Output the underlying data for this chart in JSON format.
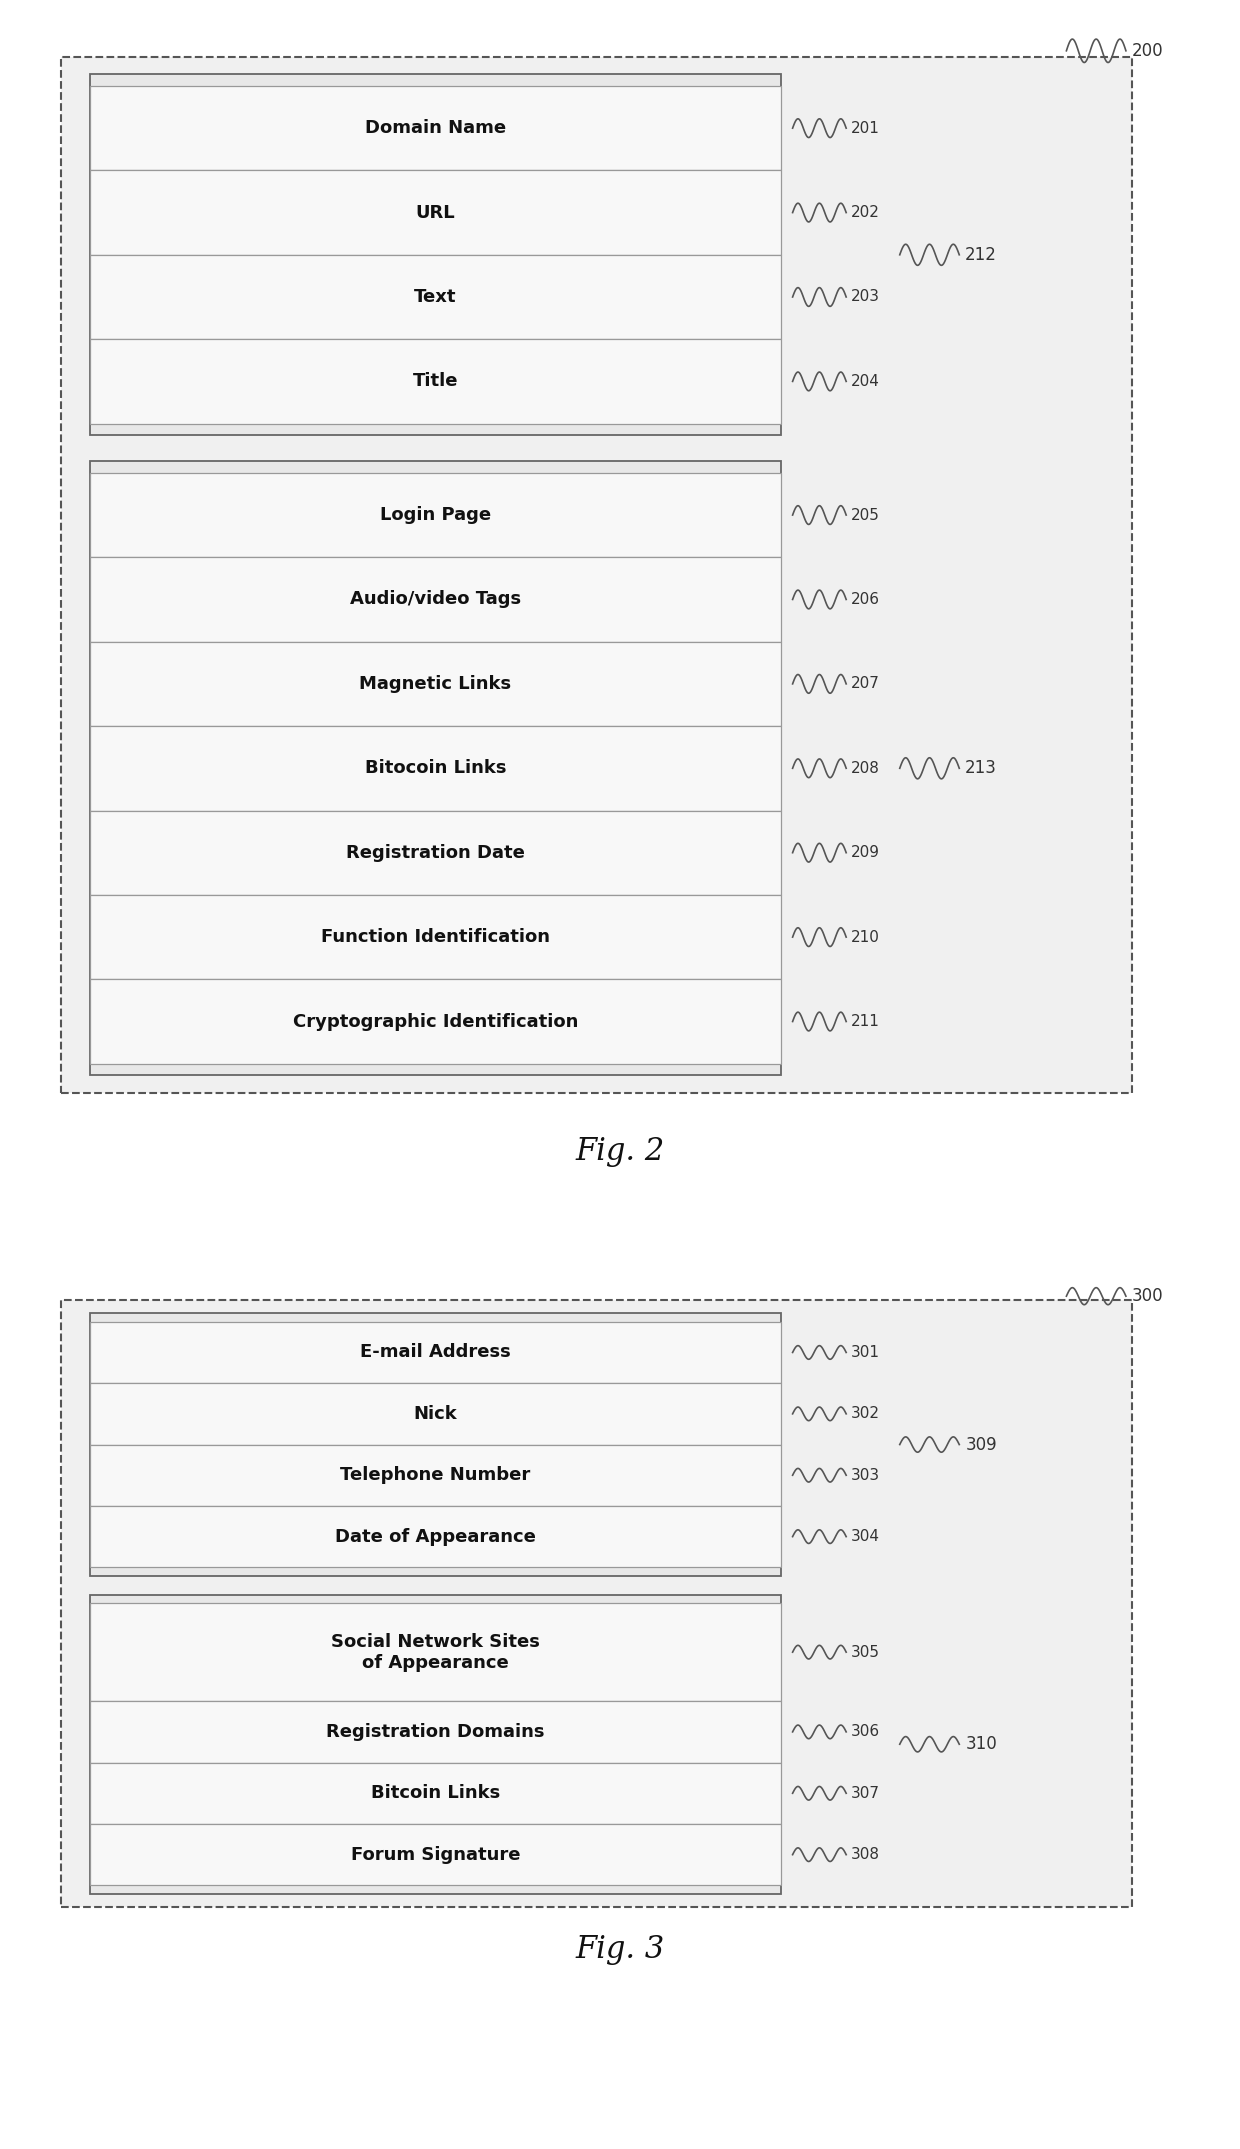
{
  "fig2": {
    "outer_label": "200",
    "group1": {
      "label": "212",
      "rows": [
        {
          "text": "Domain Name",
          "ref": "201"
        },
        {
          "text": "URL",
          "ref": "202"
        },
        {
          "text": "Text",
          "ref": "203"
        },
        {
          "text": "Title",
          "ref": "204"
        }
      ]
    },
    "group2": {
      "label": "213",
      "rows": [
        {
          "text": "Login Page",
          "ref": "205"
        },
        {
          "text": "Audio/video Tags",
          "ref": "206"
        },
        {
          "text": "Magnetic Links",
          "ref": "207"
        },
        {
          "text": "Bitocoin Links",
          "ref": "208"
        },
        {
          "text": "Registration Date",
          "ref": "209"
        },
        {
          "text": "Function Identification",
          "ref": "210"
        },
        {
          "text": "Cryptographic Identification",
          "ref": "211"
        }
      ]
    },
    "fig_label": "Fig. 2"
  },
  "fig3": {
    "outer_label": "300",
    "group1": {
      "label": "309",
      "rows": [
        {
          "text": "E-mail Address",
          "ref": "301"
        },
        {
          "text": "Nick",
          "ref": "302"
        },
        {
          "text": "Telephone Number",
          "ref": "303"
        },
        {
          "text": "Date of Appearance",
          "ref": "304"
        }
      ]
    },
    "group2": {
      "label": "310",
      "rows": [
        {
          "text": "Social Network Sites\nof Appearance",
          "ref": "305",
          "tall": true
        },
        {
          "text": "Registration Domains",
          "ref": "306"
        },
        {
          "text": "Bitcoin Links",
          "ref": "307"
        },
        {
          "text": "Forum Signature",
          "ref": "308"
        }
      ]
    },
    "fig_label": "Fig. 3"
  },
  "bg_color": "#ffffff",
  "row_fill": "#f8f8f8",
  "group_fill": "#e0e0e0",
  "outer_fill": "#d8d8d8",
  "row_edge": "#999999",
  "group_edge": "#666666",
  "outer_edge": "#555555",
  "text_color": "#111111",
  "ref_color": "#333333",
  "font_size": 13,
  "ref_font_size": 11,
  "label_font_size": 12,
  "fig_label_font_size": 22
}
